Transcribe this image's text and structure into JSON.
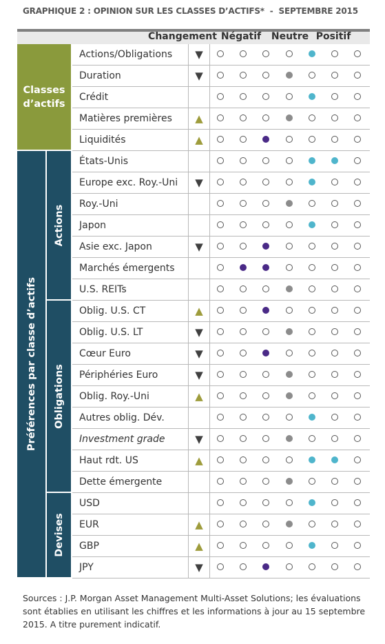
{
  "title": "GRAPHIQUE 2 : OPINION SUR LES CLASSES D’ACTIFS*  -  SEPTEMBRE 2015",
  "header": {
    "change": "Changement",
    "negative": "Négatif",
    "neutral": "Neutre",
    "positive": "Positif"
  },
  "sections": [
    {
      "label": "Classes d’actifs",
      "rows": [
        {
          "label": "Actions/Obligations",
          "change": "▼",
          "filled": [
            5
          ]
        },
        {
          "label": "Duration",
          "change": "▼",
          "filled": [
            4
          ]
        },
        {
          "label": "Crédit",
          "filled": [
            5
          ]
        },
        {
          "label": "Matières premières",
          "change": "▲",
          "filled": [
            4
          ]
        },
        {
          "label": "Liquidités",
          "change": "▲",
          "filled": [
            3
          ]
        }
      ]
    },
    {
      "label": "Préférences par classe d’actifs",
      "groups": [
        {
          "label": "Actions",
          "rows": [
            {
              "label": "États-Unis",
              "filled": [
                5,
                6
              ]
            },
            {
              "label": "Europe exc. Roy.-Uni",
              "change": "▼",
              "filled": [
                5
              ]
            },
            {
              "label": "Roy.-Uni",
              "filled": [
                4
              ]
            },
            {
              "label": "Japon",
              "filled": [
                5
              ]
            },
            {
              "label": "Asie exc. Japon",
              "change": "▼",
              "filled": [
                3
              ]
            },
            {
              "label": "Marchés émergents",
              "filled": [
                2,
                3
              ]
            },
            {
              "label": "U.S. REITs",
              "filled": [
                4
              ]
            }
          ]
        },
        {
          "label": "Obligations",
          "rows": [
            {
              "label": "Oblig. U.S. CT",
              "change": "▲",
              "filled": [
                3
              ]
            },
            {
              "label": "Oblig. U.S. LT",
              "change": "▼",
              "filled": [
                4
              ]
            },
            {
              "label": "Cœur Euro",
              "change": "▼",
              "filled": [
                3
              ]
            },
            {
              "label": "Périphéries Euro",
              "change": "▼",
              "filled": [
                4
              ]
            },
            {
              "label": "Oblig. Roy.-Uni",
              "change": "▲",
              "filled": [
                4
              ]
            },
            {
              "label": "Autres oblig. Dév.",
              "filled": [
                5
              ]
            },
            {
              "label": "Investment grade",
              "change": "▼",
              "filled": [
                4
              ],
              "italic": true
            },
            {
              "label": "Haut rdt. US",
              "change": "▲",
              "filled": [
                5,
                6
              ]
            },
            {
              "label": "Dette émergente",
              "filled": [
                4
              ]
            }
          ]
        },
        {
          "label": "Devises",
          "rows": [
            {
              "label": "USD",
              "filled": [
                5
              ]
            },
            {
              "label": "EUR",
              "change": "▲",
              "filled": [
                4
              ]
            },
            {
              "label": "GBP",
              "change": "▲",
              "filled": [
                5
              ]
            },
            {
              "label": "JPY",
              "change": "▼",
              "filled": [
                3
              ]
            }
          ]
        }
      ]
    }
  ],
  "footer": "Sources : J.P. Morgan Asset Management Multi-Asset Solutions; les évaluations sont établies en utilisant les chiffres et les informations à jour au 15 septembre 2015. A titre purement indicatif."
}
